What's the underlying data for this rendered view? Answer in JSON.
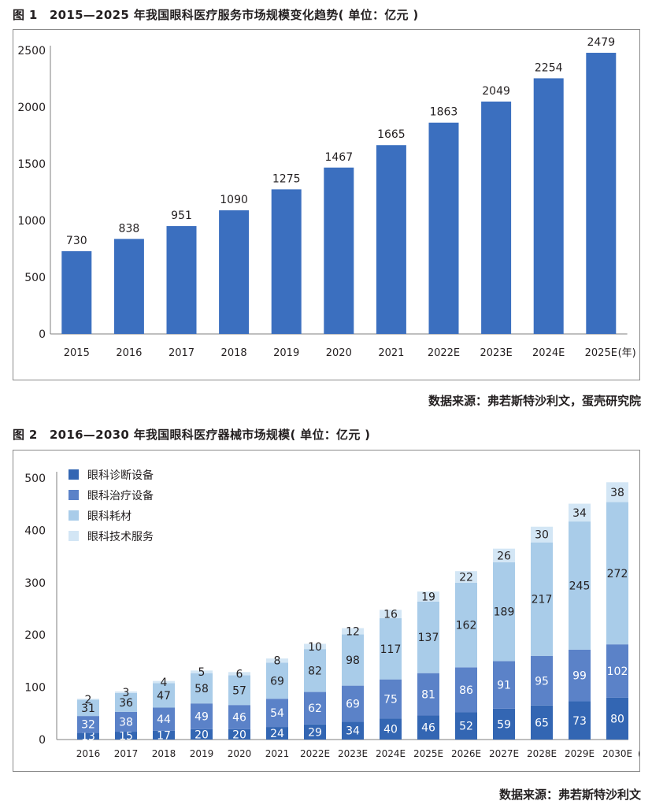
{
  "figure1": {
    "title": "图 1　2015—2025 年我国眼科医疗服务市场规模变化趋势( 单位：亿元 )",
    "source": "数据来源：弗若斯特沙利文，蛋壳研究院",
    "chart_data": {
      "type": "bar",
      "title": "2015—2025 年我国眼科医疗服务市场规模变化趋势( 单位：亿元 )",
      "categories": [
        "2015",
        "2016",
        "2017",
        "2018",
        "2019",
        "2020",
        "2021",
        "2022E",
        "2023E",
        "2024E",
        "2025E"
      ],
      "values": [
        730,
        838,
        951,
        1090,
        1275,
        1467,
        1665,
        1863,
        2049,
        2254,
        2479
      ],
      "ylim": [
        0,
        2500
      ],
      "yticks": [
        0,
        500,
        1000,
        1500,
        2000,
        2500
      ],
      "x_unit": "(年)",
      "color": "#3b6fbf",
      "grid": false
    }
  },
  "figure2": {
    "title": "图 2　2016—2030 年我国眼科医疗器械市场规模( 单位：亿元 )",
    "source": "数据来源：弗若斯特沙利文",
    "chart_data": {
      "type": "bar",
      "stacked": true,
      "title": "2016—2030 年我国眼科医疗器械市场规模( 单位：亿元 )",
      "categories": [
        "2016",
        "2017",
        "2018",
        "2019",
        "2020",
        "2021",
        "2022E",
        "2023E",
        "2024E",
        "2025E",
        "2026E",
        "2027E",
        "2028E",
        "2029E",
        "2030E"
      ],
      "series": [
        {
          "name": "眼科诊断设备",
          "color": "#3366b3",
          "values": [
            13,
            15,
            17,
            20,
            20,
            24,
            29,
            34,
            40,
            46,
            52,
            59,
            65,
            73,
            80
          ]
        },
        {
          "name": "眼科治疗设备",
          "color": "#5b82c8",
          "values": [
            32,
            38,
            44,
            49,
            46,
            54,
            62,
            69,
            75,
            81,
            86,
            91,
            95,
            99,
            102
          ]
        },
        {
          "name": "眼科耗材",
          "color": "#a9cce9",
          "values": [
            31,
            36,
            47,
            58,
            57,
            69,
            82,
            98,
            117,
            137,
            162,
            189,
            217,
            245,
            272
          ]
        },
        {
          "name": "眼科技术服务",
          "color": "#d3e6f5",
          "values": [
            2,
            3,
            4,
            5,
            6,
            8,
            10,
            12,
            16,
            19,
            22,
            26,
            30,
            34,
            38
          ]
        }
      ],
      "ylim": [
        0,
        500
      ],
      "yticks": [
        0,
        100,
        200,
        300,
        400,
        500
      ],
      "x_unit": "(年)",
      "legend_position": "top-left",
      "grid": false
    }
  }
}
